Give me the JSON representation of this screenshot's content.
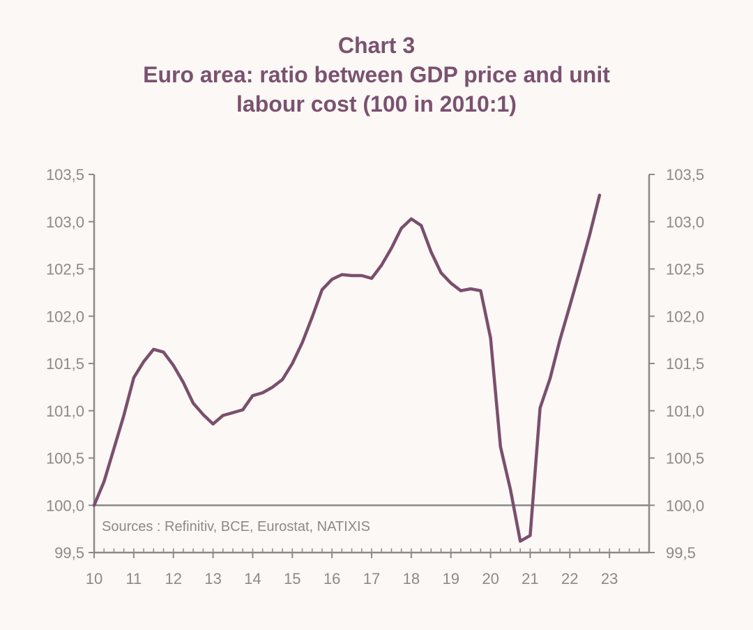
{
  "chart_data": {
    "type": "line",
    "title_line1": "Chart 3",
    "title_line2": "Euro area: ratio between GDP price and unit",
    "title_line3": "labour cost (100 in 2010:1)",
    "source": "Sources : Refinitiv, BCE, Eurostat, NATIXIS",
    "xlabel": "",
    "ylabel": "",
    "x_ticks": [
      "10",
      "11",
      "12",
      "13",
      "14",
      "15",
      "16",
      "17",
      "18",
      "19",
      "20",
      "21",
      "22",
      "23"
    ],
    "y_ticks": [
      "99,5",
      "100,0",
      "100,5",
      "101,0",
      "101,5",
      "102,0",
      "102,5",
      "103,0",
      "103,5"
    ],
    "ylim": [
      99.5,
      103.5
    ],
    "xlim": [
      2010.0,
      2024.0
    ],
    "reference_line": 100.0,
    "grid": false,
    "series": [
      {
        "color": "#7a4f6d",
        "x": [
          2010.0,
          2010.25,
          2010.5,
          2010.75,
          2011.0,
          2011.25,
          2011.5,
          2011.75,
          2012.0,
          2012.25,
          2012.5,
          2012.75,
          2013.0,
          2013.25,
          2013.5,
          2013.75,
          2014.0,
          2014.25,
          2014.5,
          2014.75,
          2015.0,
          2015.25,
          2015.5,
          2015.75,
          2016.0,
          2016.25,
          2016.5,
          2016.75,
          2017.0,
          2017.25,
          2017.5,
          2017.75,
          2018.0,
          2018.25,
          2018.5,
          2018.75,
          2019.0,
          2019.25,
          2019.5,
          2019.75,
          2020.0,
          2020.25,
          2020.5,
          2020.75,
          2021.0,
          2021.25,
          2021.5,
          2021.75,
          2022.0,
          2022.25,
          2022.5,
          2022.75
        ],
        "values": [
          100.0,
          100.25,
          100.6,
          100.95,
          101.35,
          101.52,
          101.65,
          101.62,
          101.48,
          101.3,
          101.08,
          100.96,
          100.86,
          100.95,
          100.98,
          101.01,
          101.16,
          101.19,
          101.25,
          101.33,
          101.5,
          101.72,
          101.99,
          102.28,
          102.39,
          102.44,
          102.43,
          102.43,
          102.4,
          102.54,
          102.72,
          102.93,
          103.03,
          102.96,
          102.68,
          102.46,
          102.35,
          102.27,
          102.29,
          102.27,
          101.77,
          100.62,
          100.17,
          99.62,
          99.68,
          101.03,
          101.34,
          101.75,
          102.11,
          102.48,
          102.86,
          103.28
        ]
      }
    ]
  }
}
